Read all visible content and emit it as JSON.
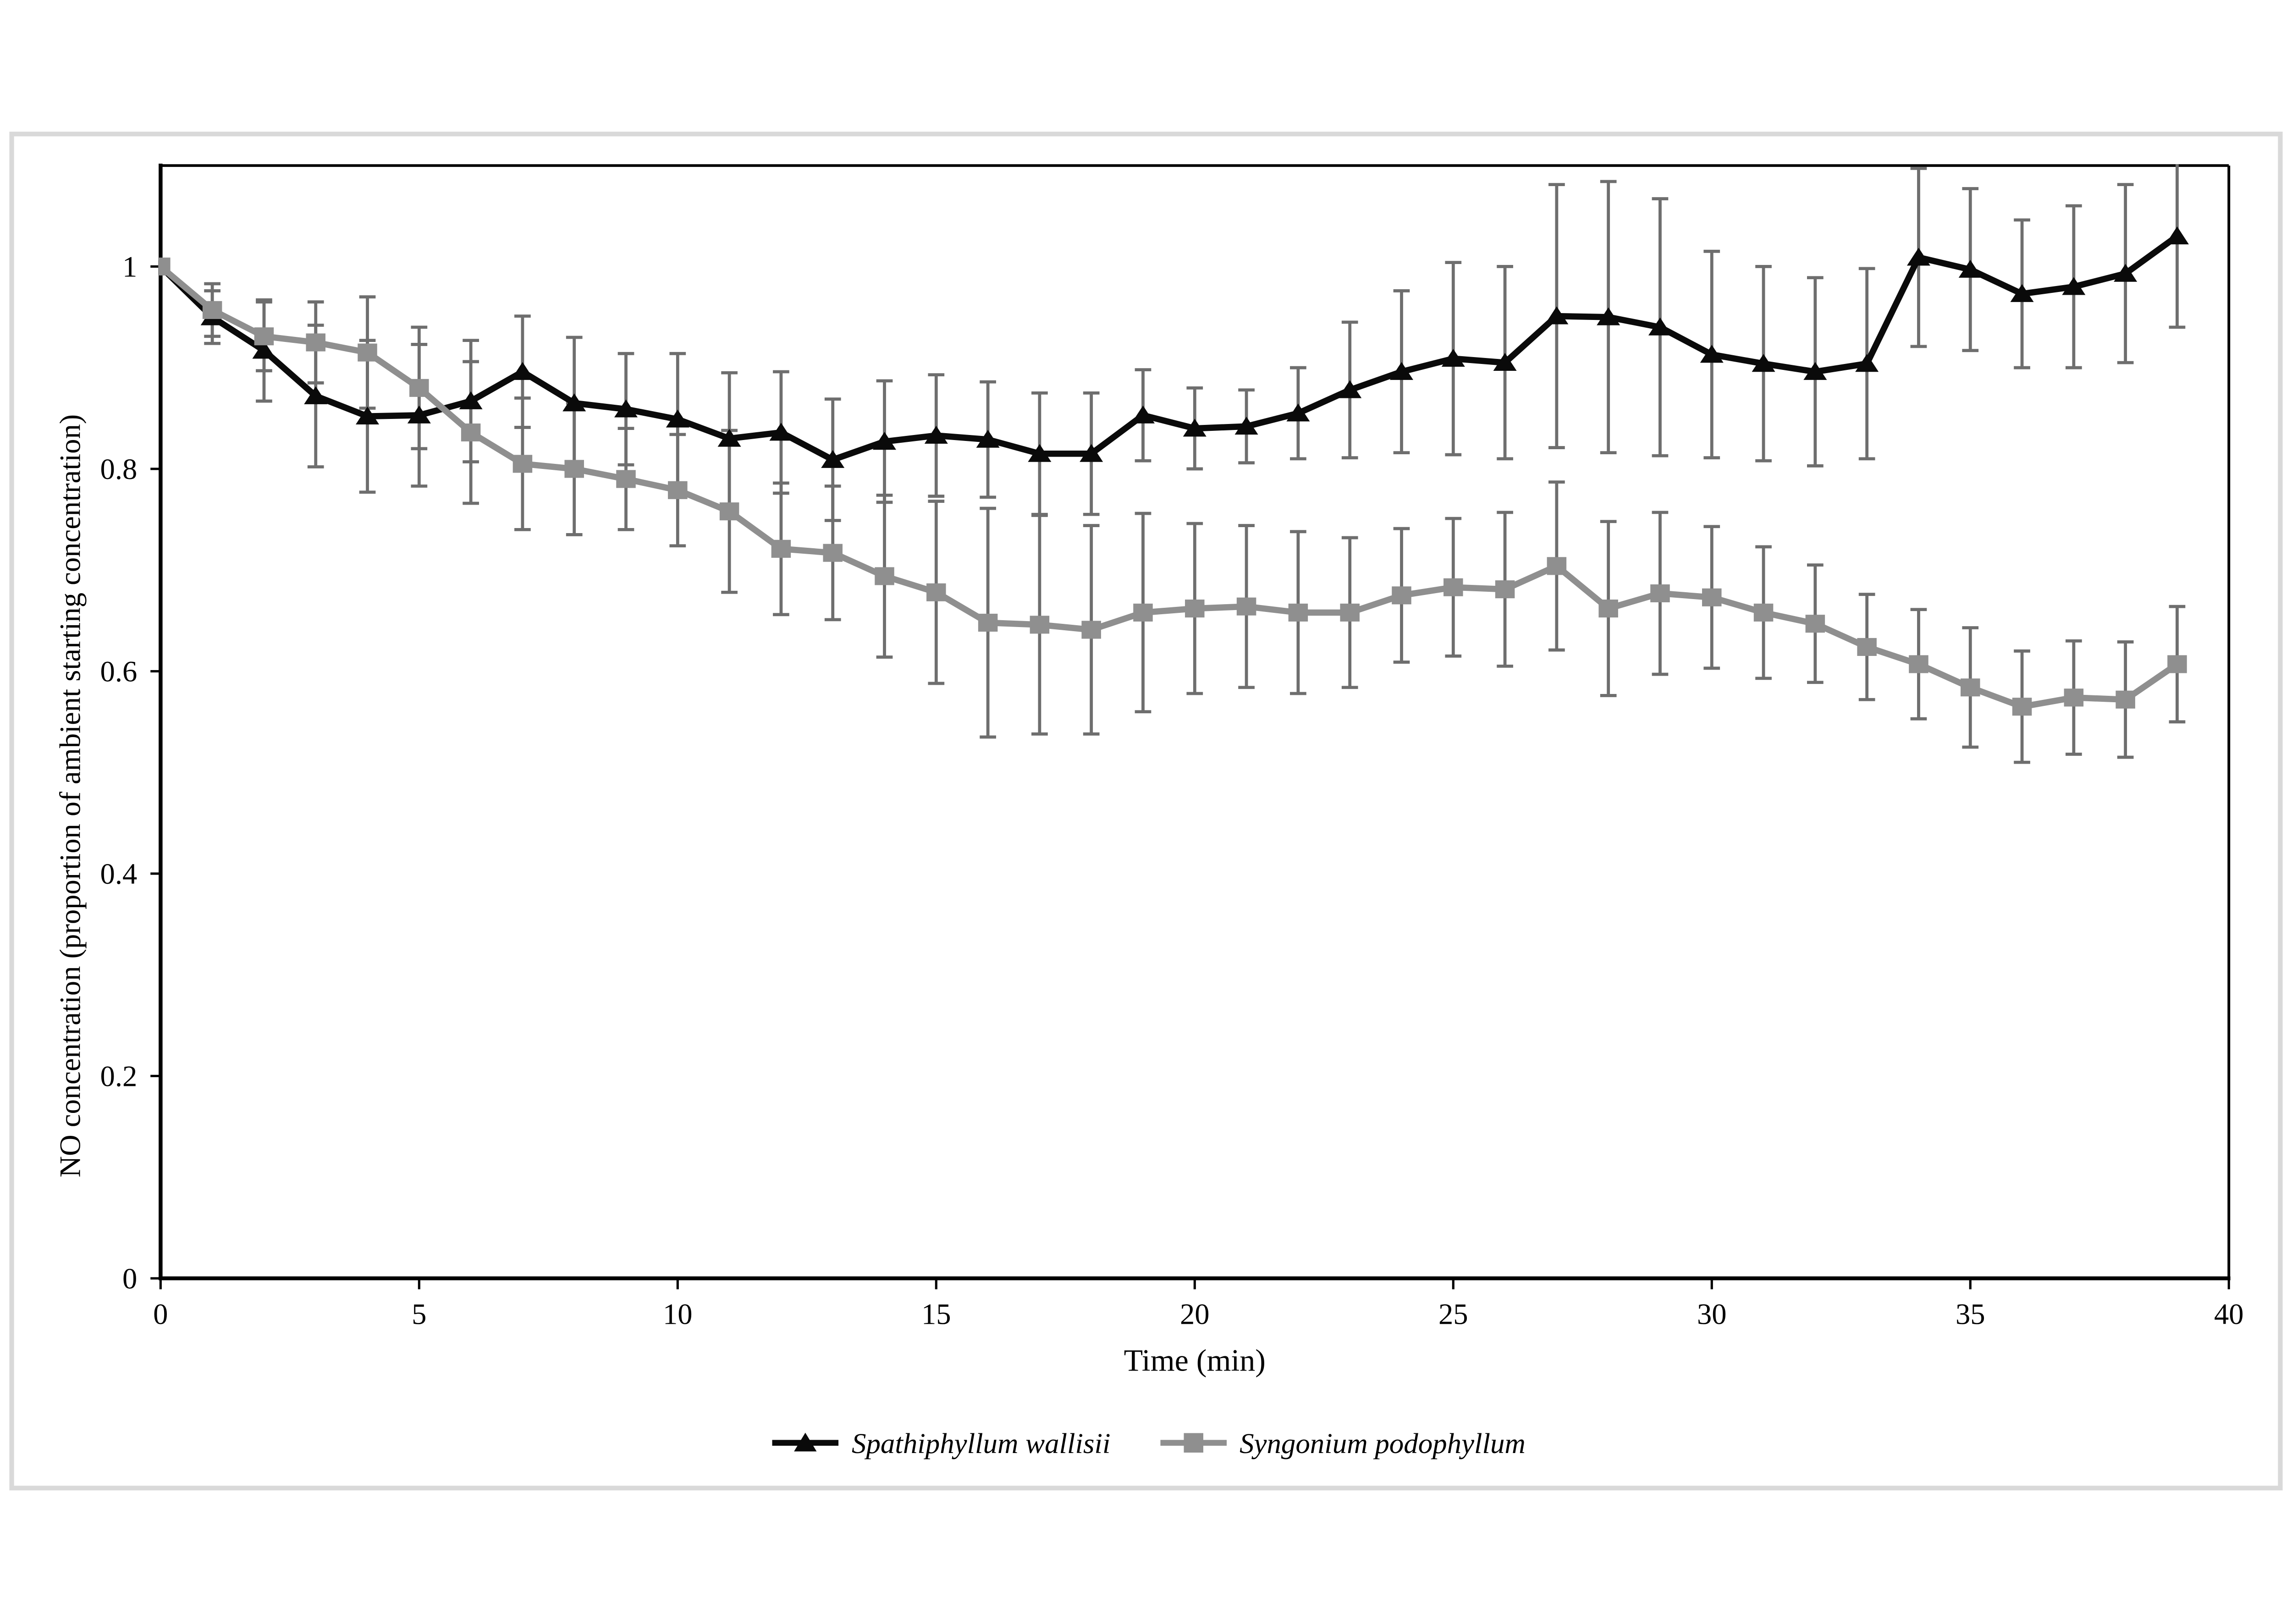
{
  "figure": {
    "background_color": "#ffffff",
    "outer_border_color": "#d9d9d9",
    "plot_border_color": "#000000",
    "error_bar_color": "#6e6e6e"
  },
  "axes": {
    "x_title": "Time (min)",
    "y_title": "NO concentration (proportion of ambient starting concentration)",
    "x_tick_labels": [
      "0",
      "5",
      "10",
      "15",
      "20",
      "25",
      "30",
      "35",
      "40"
    ],
    "x_tick_values": [
      0,
      5,
      10,
      15,
      20,
      25,
      30,
      35,
      40
    ],
    "y_tick_labels": [
      "0",
      "0.2",
      "0.4",
      "0.6",
      "0.8",
      "1"
    ],
    "y_tick_values": [
      0,
      0.2,
      0.4,
      0.6,
      0.8,
      1
    ]
  },
  "legend": {
    "items": [
      {
        "label": "Spathiphyllum wallisii",
        "marker": "triangle",
        "color": "#0a0a0a"
      },
      {
        "label": "Syngonium podophyllum",
        "marker": "square",
        "color": "#8f8f8f"
      }
    ]
  },
  "chart_data": {
    "type": "line",
    "title": "",
    "xlabel": "Time (min)",
    "ylabel": "NO concentration (proportion of ambient starting concentration)",
    "xlim": [
      0,
      40
    ],
    "ylim": [
      0,
      1.1
    ],
    "grid": false,
    "legend_position": "bottom",
    "error_bars": true,
    "x": [
      0,
      1,
      2,
      3,
      4,
      5,
      6,
      7,
      8,
      9,
      10,
      11,
      12,
      13,
      14,
      15,
      16,
      17,
      18,
      19,
      20,
      21,
      22,
      23,
      24,
      25,
      26,
      27,
      28,
      29,
      30,
      31,
      32,
      33,
      34,
      35,
      36,
      37,
      38,
      39
    ],
    "series": [
      {
        "name": "Spathiphyllum wallisii",
        "marker": "triangle",
        "color": "#0a0a0a",
        "values": [
          1.0,
          0.95,
          0.917,
          0.872,
          0.852,
          0.853,
          0.867,
          0.896,
          0.865,
          0.859,
          0.849,
          0.83,
          0.836,
          0.809,
          0.827,
          0.833,
          0.829,
          0.815,
          0.815,
          0.853,
          0.84,
          0.842,
          0.855,
          0.878,
          0.896,
          0.909,
          0.905,
          0.951,
          0.95,
          0.94,
          0.913,
          0.904,
          0.896,
          0.904,
          1.009,
          0.997,
          0.973,
          0.98,
          0.993,
          1.03
        ],
        "errors": [
          0,
          0.026,
          0.05,
          0.07,
          0.075,
          0.07,
          0.06,
          0.055,
          0.065,
          0.055,
          0.065,
          0.065,
          0.06,
          0.06,
          0.06,
          0.06,
          0.057,
          0.06,
          0.06,
          0.045,
          0.04,
          0.036,
          0.045,
          0.067,
          0.08,
          0.095,
          0.095,
          0.13,
          0.134,
          0.127,
          0.102,
          0.096,
          0.093,
          0.094,
          0.088,
          0.08,
          0.073,
          0.08,
          0.088,
          0.09
        ]
      },
      {
        "name": "Syngonium podophyllum",
        "marker": "square",
        "color": "#8f8f8f",
        "values": [
          1.0,
          0.957,
          0.931,
          0.925,
          0.915,
          0.88,
          0.836,
          0.805,
          0.8,
          0.79,
          0.779,
          0.758,
          0.721,
          0.717,
          0.694,
          0.678,
          0.648,
          0.646,
          0.641,
          0.658,
          0.662,
          0.664,
          0.658,
          0.658,
          0.675,
          0.683,
          0.681,
          0.704,
          0.662,
          0.677,
          0.673,
          0.658,
          0.647,
          0.624,
          0.607,
          0.584,
          0.565,
          0.574,
          0.572,
          0.607
        ],
        "errors": [
          0,
          0.026,
          0.034,
          0.04,
          0.055,
          0.06,
          0.07,
          0.065,
          0.065,
          0.05,
          0.055,
          0.08,
          0.065,
          0.066,
          0.08,
          0.09,
          0.113,
          0.108,
          0.103,
          0.098,
          0.084,
          0.08,
          0.08,
          0.074,
          0.066,
          0.068,
          0.076,
          0.083,
          0.086,
          0.08,
          0.07,
          0.065,
          0.058,
          0.052,
          0.054,
          0.059,
          0.055,
          0.056,
          0.057,
          0.057
        ]
      }
    ]
  }
}
